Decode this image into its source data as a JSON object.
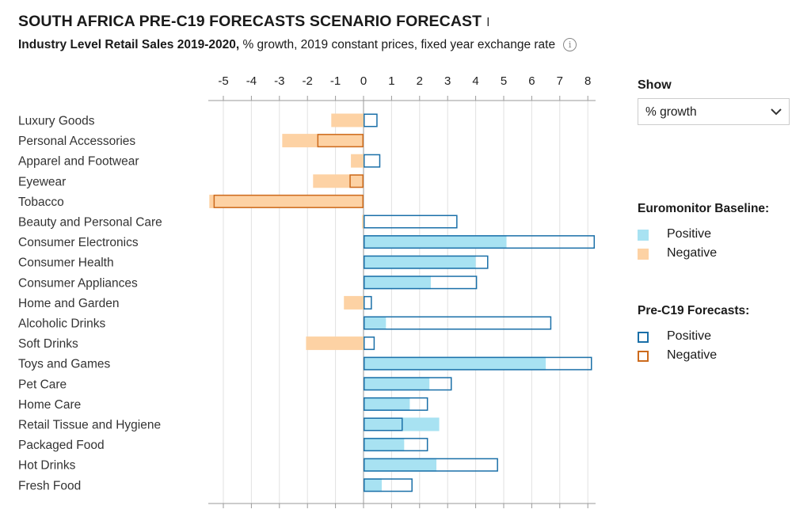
{
  "header": {
    "title": "SOUTH AFRICA PRE-C19 FORECASTS SCENARIO FORECAST",
    "title_cursor": "I",
    "subtitle_bold": "Industry Level Retail Sales 2019-2020,",
    "subtitle_rest": " % growth, 2019 constant prices, fixed year exchange rate",
    "info_symbol": "i"
  },
  "controls": {
    "show_label": "Show",
    "show_value": "% growth"
  },
  "legend": {
    "baseline_title": "Euromonitor Baseline:",
    "baseline_positive": "Positive",
    "baseline_negative": "Negative",
    "forecast_title": "Pre-C19 Forecasts:",
    "forecast_positive": "Positive",
    "forecast_negative": "Negative"
  },
  "colors": {
    "baseline_positive": "#a8e2f2",
    "baseline_negative": "#fdd2a4",
    "forecast_positive": "#1a6fa8",
    "forecast_negative": "#cc6a1c",
    "grid": "#e2e2e2",
    "axis": "#9a9a9a"
  },
  "chart_data": {
    "type": "bar",
    "orientation": "horizontal",
    "title": "SOUTH AFRICA PRE-C19 FORECASTS SCENARIO FORECAST",
    "subtitle": "Industry Level Retail Sales 2019-2020, % growth, 2019 constant prices, fixed year exchange rate",
    "xlim": [
      -5.3,
      8.3
    ],
    "xticks": [
      -5,
      -4,
      -3,
      -2,
      -1,
      0,
      1,
      2,
      3,
      4,
      5,
      6,
      7,
      8
    ],
    "grid": true,
    "categories": [
      "Luxury Goods",
      "Personal Accessories",
      "Apparel and Footwear",
      "Eyewear",
      "Tobacco",
      "Beauty and Personal Care",
      "Consumer Electronics",
      "Consumer Health",
      "Consumer Appliances",
      "Home and Garden",
      "Alcoholic Drinks",
      "Soft Drinks",
      "Toys and Games",
      "Pet Care",
      "Home Care",
      "Retail Tissue and Hygiene",
      "Packaged Food",
      "Hot Drinks",
      "Fresh Food"
    ],
    "series": [
      {
        "name": "Euromonitor Baseline",
        "style": "filled",
        "values": [
          -1.15,
          -2.9,
          -0.45,
          -1.8,
          -5.5,
          -0.05,
          5.1,
          4.0,
          2.4,
          -0.7,
          0.8,
          -2.05,
          6.5,
          2.35,
          1.65,
          2.7,
          1.45,
          2.6,
          0.65
        ]
      },
      {
        "name": "Pre-C19 Forecasts",
        "style": "outline",
        "values": [
          0.5,
          -1.65,
          0.6,
          -0.5,
          -5.35,
          3.35,
          8.25,
          4.45,
          4.05,
          0.3,
          6.7,
          0.4,
          8.15,
          3.15,
          2.3,
          1.4,
          2.3,
          4.8,
          1.75
        ]
      }
    ]
  }
}
